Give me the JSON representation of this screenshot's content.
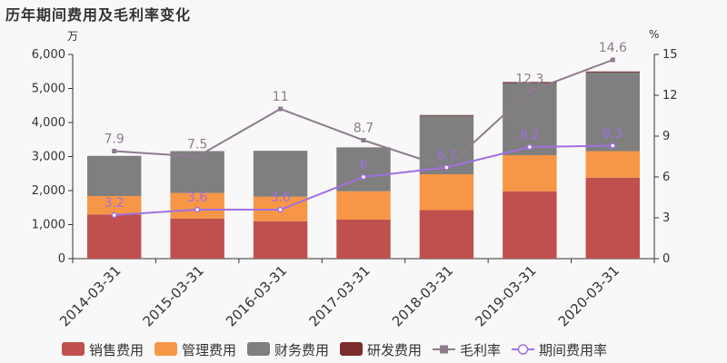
{
  "page": {
    "title": "历年期间费用及毛利率变化"
  },
  "chart_data": {
    "type": "bar",
    "stacked": true,
    "title": "历年期间费用及毛利率变化",
    "categories": [
      "2014-03-31",
      "2015-03-31",
      "2016-03-31",
      "2017-03-31",
      "2018-03-31",
      "2019-03-31",
      "2020-03-31"
    ],
    "y_left": {
      "unit": "万",
      "ylim": [
        0,
        6000
      ],
      "ticks": [
        "0",
        "1,000",
        "2,000",
        "3,000",
        "4,000",
        "5,000",
        "6,000"
      ]
    },
    "y_right": {
      "unit": "%",
      "ylim": [
        0,
        15
      ],
      "ticks": [
        "0",
        "3",
        "6",
        "9",
        "12",
        "15"
      ]
    },
    "grid": false,
    "legend_position": "bottom",
    "series": [
      {
        "name": "销售费用",
        "type": "bar",
        "axis": "left",
        "color": "#c0504d",
        "values": [
          1300,
          1180,
          1100,
          1150,
          1430,
          1980,
          2380
        ]
      },
      {
        "name": "管理费用",
        "type": "bar",
        "axis": "left",
        "color": "#f79646",
        "values": [
          540,
          750,
          720,
          830,
          1050,
          1060,
          780
        ]
      },
      {
        "name": "财务费用",
        "type": "bar",
        "axis": "left",
        "color": "#7f7f7f",
        "values": [
          1180,
          1230,
          1350,
          1290,
          1720,
          2120,
          2310
        ]
      },
      {
        "name": "研发费用",
        "type": "bar",
        "axis": "left",
        "color": "#7b2c2c",
        "values": [
          0,
          0,
          0,
          0,
          20,
          30,
          30
        ]
      },
      {
        "name": "毛利率",
        "type": "line",
        "axis": "right",
        "color": "#8e7b8e",
        "marker": "square",
        "values": [
          7.9,
          7.5,
          11,
          8.7,
          6.7,
          12.3,
          14.6
        ],
        "labels": [
          "7.9",
          "7.5",
          "11",
          "8.7",
          "",
          "12.3",
          "14.6"
        ]
      },
      {
        "name": "期间费用率",
        "type": "line",
        "axis": "right",
        "color": "#a070e0",
        "marker": "circle",
        "values": [
          3.2,
          3.6,
          3.6,
          6,
          6.7,
          8.2,
          8.3
        ],
        "labels": [
          "3.2",
          "3.6",
          "3.6",
          "6",
          "6.7",
          "8.2",
          "8.3"
        ]
      }
    ]
  }
}
